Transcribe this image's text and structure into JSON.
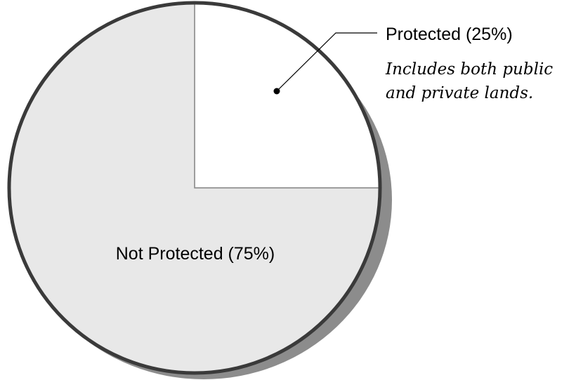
{
  "chart_data": {
    "type": "pie",
    "slices": [
      {
        "label": "Protected (25%)",
        "value": 25,
        "color": "#ffffff"
      },
      {
        "label": "Not Protected (75%)",
        "value": 75,
        "color": "#e8e8e8"
      }
    ],
    "annotation": {
      "lines": [
        "Includes both public",
        "and private lands."
      ]
    },
    "outline_color": "#3a3a3a",
    "shadow_color": "#8c8c8c",
    "divider_color": "#8a8a8a"
  }
}
